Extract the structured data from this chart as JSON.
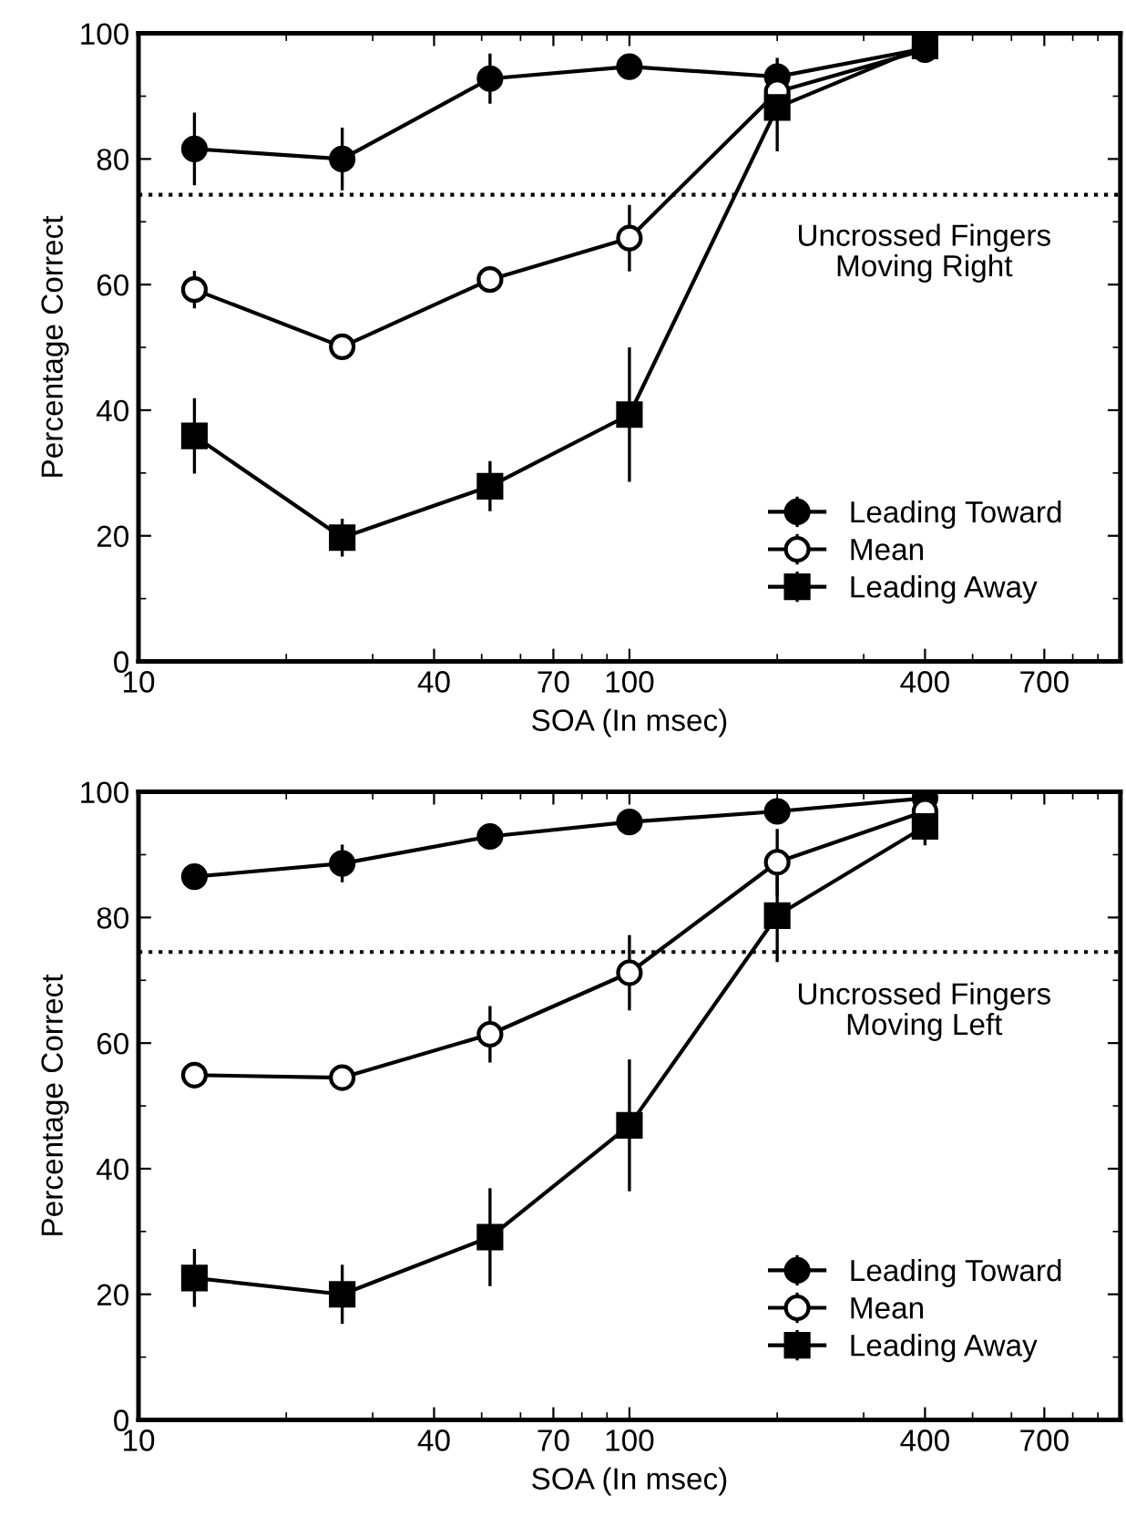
{
  "chart_data": [
    {
      "type": "line",
      "xlabel": "SOA (In msec)",
      "ylabel": "Percentage Correct",
      "x": [
        13,
        26,
        52,
        100,
        200,
        400
      ],
      "series": [
        {
          "name": "Leading Toward",
          "color": "#000000",
          "marker": "circle",
          "values": [
            81.6,
            80,
            92.8,
            94.7,
            93.1,
            97.6
          ],
          "errors": [
            5.8,
            5,
            4,
            1,
            3,
            1
          ]
        },
        {
          "name": "Mean",
          "color": "#000000",
          "marker": "circle",
          "values": [
            59.2,
            50.1,
            60.8,
            67.4,
            90.7,
            97.4
          ],
          "errors": [
            3,
            2,
            2,
            5.3,
            3,
            1
          ]
        },
        {
          "name": "Leading Away",
          "color": "#000000",
          "marker": "square",
          "values": [
            35.9,
            19.7,
            27.9,
            39.3,
            88.2,
            98
          ],
          "errors": [
            6,
            3,
            4,
            10.7,
            7,
            1
          ]
        }
      ],
      "log": "x",
      "xlim": [
        10,
        1000
      ],
      "xticks": [
        10,
        40,
        70,
        100,
        400,
        700
      ],
      "ylim": [
        0,
        100
      ],
      "yticks": [
        0,
        20,
        40,
        60,
        80,
        100
      ],
      "ref_lines": [
        {
          "axis": "y",
          "value": 74.3,
          "line_style": "dotted",
          "color": "#000000"
        }
      ],
      "annotations": [
        "Uncrossed Fingers\nMoving Right"
      ],
      "legend": "bottom right",
      "grid": false,
      "line_style": "solid"
    },
    {
      "type": "line",
      "xlabel": "SOA (In msec)",
      "ylabel": "Percentage Correct",
      "x": [
        13,
        26,
        52,
        100,
        200,
        400
      ],
      "series": [
        {
          "name": "Leading Toward",
          "color": "#000000",
          "marker": "circle",
          "values": [
            86.5,
            88.6,
            92.9,
            95.2,
            96.9,
            99
          ],
          "errors": [
            1,
            3,
            2,
            1,
            1,
            1
          ]
        },
        {
          "name": "Mean",
          "color": "#000000",
          "marker": "circle",
          "values": [
            54.9,
            54.5,
            61.4,
            71.2,
            88.8,
            96.9
          ],
          "errors": [
            1,
            1,
            4.5,
            6,
            5.3,
            2
          ]
        },
        {
          "name": "Leading Away",
          "color": "#000000",
          "marker": "square",
          "values": [
            22.6,
            20,
            29.1,
            46.9,
            80.3,
            94.5
          ],
          "errors": [
            4.6,
            4.7,
            7.8,
            10.5,
            7.4,
            3
          ]
        }
      ],
      "log": "x",
      "xlim": [
        10,
        1000
      ],
      "xticks": [
        10,
        40,
        70,
        100,
        400,
        700
      ],
      "ylim": [
        0,
        100
      ],
      "yticks": [
        0,
        20,
        40,
        60,
        80,
        100
      ],
      "ref_lines": [
        {
          "axis": "y",
          "value": 74.5,
          "line_style": "dotted",
          "color": "#000000"
        }
      ],
      "annotations": [
        "Uncrossed Fingers\nMoving Left"
      ],
      "legend": "bottom right",
      "grid": false,
      "line_style": "solid"
    }
  ]
}
